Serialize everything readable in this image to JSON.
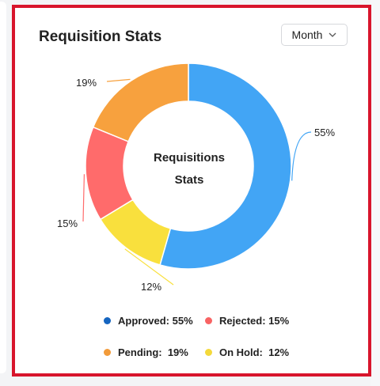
{
  "card": {
    "title": "Requisition Stats",
    "filter": {
      "selected": "Month"
    }
  },
  "chart_data": {
    "type": "pie",
    "center_label": [
      "Requisitions",
      "Stats"
    ],
    "slices": [
      {
        "label": "Approved",
        "value": 55,
        "color": "#42a5f5",
        "dot_color": "#1565c0"
      },
      {
        "label": "On Hold",
        "value": 12,
        "color": "#f9e03d",
        "dot_color": "#f4d93b"
      },
      {
        "label": "Rejected",
        "value": 15,
        "color": "#ff6b6b",
        "dot_color": "#f86363"
      },
      {
        "label": "Pending",
        "value": 19,
        "color": "#f7a13e",
        "dot_color": "#f29b3a"
      }
    ],
    "data_labels": [
      "55%",
      "12%",
      "15%",
      "19%"
    ]
  },
  "legend": {
    "approved": "Approved: 55%",
    "rejected": "Rejected: 15%",
    "pending": "Pending:  19%",
    "on_hold": "On Hold:  12%"
  }
}
